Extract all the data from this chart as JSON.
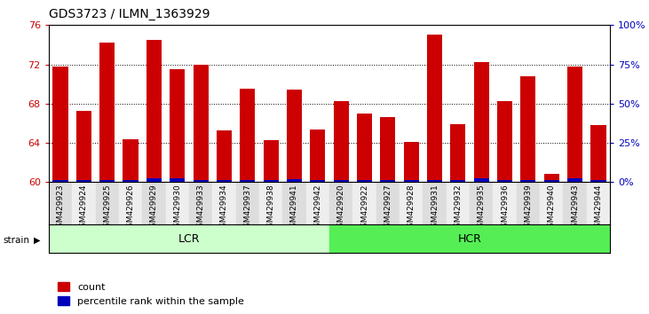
{
  "title": "GDS3723 / ILMN_1363929",
  "samples": [
    "GSM429923",
    "GSM429924",
    "GSM429925",
    "GSM429926",
    "GSM429929",
    "GSM429930",
    "GSM429933",
    "GSM429934",
    "GSM429937",
    "GSM429938",
    "GSM429941",
    "GSM429942",
    "GSM429920",
    "GSM429922",
    "GSM429927",
    "GSM429928",
    "GSM429931",
    "GSM429932",
    "GSM429935",
    "GSM429936",
    "GSM429939",
    "GSM429940",
    "GSM429943",
    "GSM429944"
  ],
  "count_values": [
    71.8,
    67.3,
    74.2,
    64.4,
    74.5,
    71.5,
    72.0,
    65.3,
    69.5,
    64.3,
    69.4,
    65.4,
    68.3,
    67.0,
    66.6,
    64.1,
    75.0,
    65.9,
    72.2,
    68.3,
    70.8,
    60.8,
    71.8,
    65.8
  ],
  "percentile_values": [
    0.25,
    0.25,
    0.25,
    0.25,
    0.35,
    0.35,
    0.25,
    0.25,
    0.25,
    0.25,
    0.3,
    0.25,
    0.25,
    0.25,
    0.25,
    0.25,
    0.25,
    0.25,
    0.4,
    0.25,
    0.25,
    0.25,
    0.4,
    0.25
  ],
  "lcr_count": 12,
  "hcr_count": 12,
  "ymin": 60,
  "ymax": 76,
  "yticks": [
    60,
    64,
    68,
    72,
    76
  ],
  "right_yticks_pct": [
    0,
    25,
    50,
    75,
    100
  ],
  "right_yticklabels": [
    "0%",
    "25%",
    "50%",
    "75%",
    "100%"
  ],
  "bar_color_red": "#cc0000",
  "bar_color_blue": "#0000bb",
  "lcr_bg": "#ccffcc",
  "hcr_bg": "#55ee55",
  "tick_bg_even": "#dddddd",
  "tick_bg_odd": "#eeeeee",
  "ylabel_color": "#cc0000",
  "right_axis_color": "#0000bb"
}
